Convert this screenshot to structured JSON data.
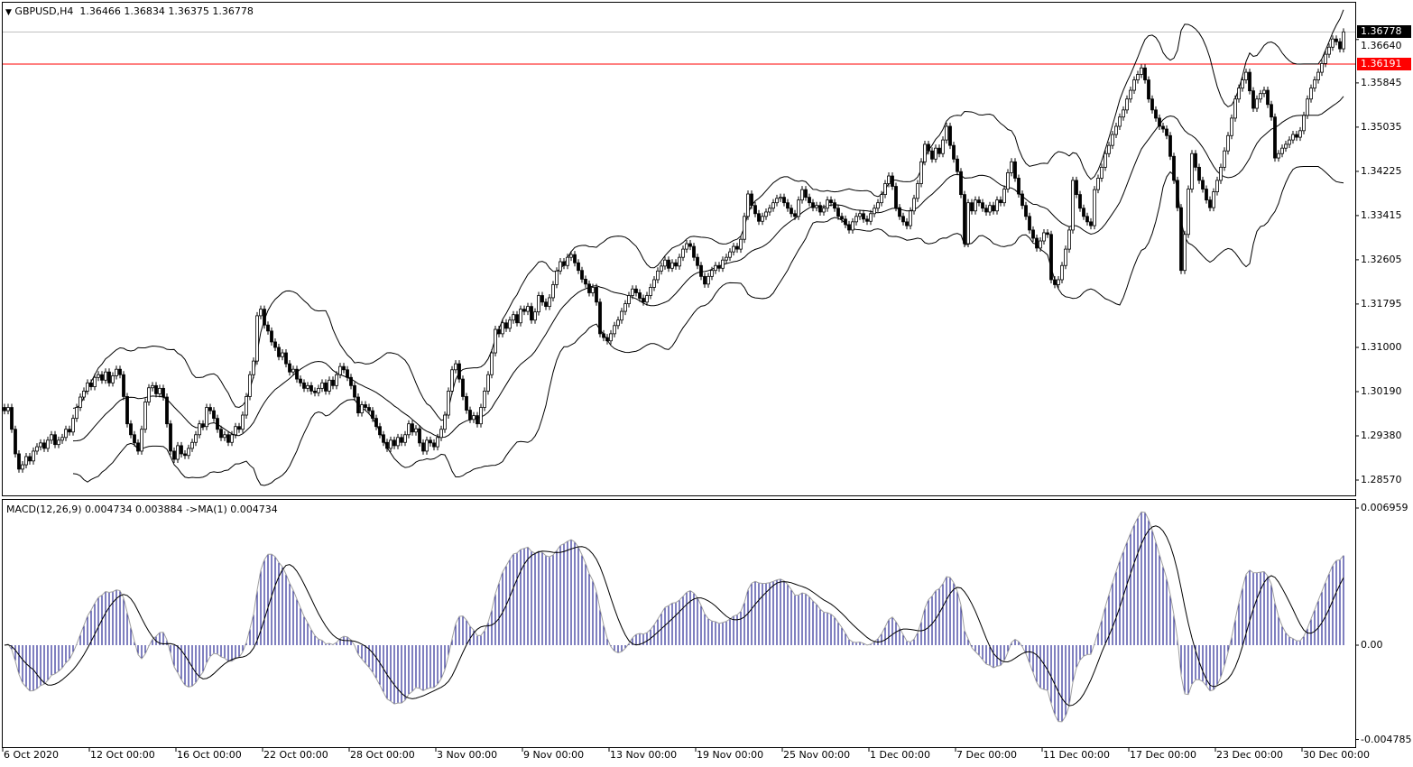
{
  "header": {
    "symbol_timeframe": "GBPUSD,H4",
    "ohlc": "1.36466 1.36834 1.36375 1.36778",
    "menu_icon": "triangle-down-icon"
  },
  "macd_panel": {
    "legend": "MACD(12,26,9) 0.004734 0.003884  ->MA(1) 0.004734"
  },
  "price_tags": {
    "current": {
      "label": "1.36778",
      "value": 1.36778,
      "color": "#000000"
    },
    "level": {
      "label": "1.36191",
      "value": 1.36191,
      "color": "#ff0000"
    }
  },
  "colors": {
    "histogram": "#000080",
    "line": "#000000",
    "ma_overlay": "#a0a0a0",
    "level": "#ff0000",
    "bid_line": "#c0c0c0"
  },
  "chart_data": {
    "type": "candlestick",
    "symbol": "GBPUSD",
    "timeframe": "H4",
    "indicators": [
      "Bollinger Bands",
      "MACD(12,26,9)",
      "MA(1)"
    ],
    "price_axis": {
      "ticks": [
        "1.36640",
        "1.35845",
        "1.35035",
        "1.34225",
        "1.33415",
        "1.32605",
        "1.31795",
        "1.31000",
        "1.30190",
        "1.29380",
        "1.28570"
      ],
      "ylim": [
        1.2831,
        1.3728
      ]
    },
    "macd_axis": {
      "ticks": [
        "0.006959",
        "0.00",
        "-0.004785"
      ],
      "ylim": [
        -0.004785,
        0.006959
      ]
    },
    "x_ticks": [
      {
        "bar": 0,
        "label": "6 Oct 2020"
      },
      {
        "bar": 24,
        "label": "12 Oct 00:00"
      },
      {
        "bar": 48,
        "label": "16 Oct 00:00"
      },
      {
        "bar": 72,
        "label": "22 Oct 00:00"
      },
      {
        "bar": 96,
        "label": "28 Oct 00:00"
      },
      {
        "bar": 120,
        "label": "3 Nov 00:00"
      },
      {
        "bar": 144,
        "label": "9 Nov 00:00"
      },
      {
        "bar": 168,
        "label": "13 Nov 00:00"
      },
      {
        "bar": 192,
        "label": "19 Nov 00:00"
      },
      {
        "bar": 216,
        "label": "25 Nov 00:00"
      },
      {
        "bar": 240,
        "label": "1 Dec 00:00"
      },
      {
        "bar": 264,
        "label": "7 Dec 00:00"
      },
      {
        "bar": 288,
        "label": "11 Dec 00:00"
      },
      {
        "bar": 312,
        "label": "17 Dec 00:00"
      },
      {
        "bar": 336,
        "label": "23 Dec 00:00"
      },
      {
        "bar": 360,
        "label": "30 Dec 00:00"
      }
    ],
    "close": [
      1.2984,
      1.299,
      1.295,
      1.2905,
      1.2877,
      1.2885,
      1.29,
      1.2892,
      1.291,
      1.2918,
      1.2925,
      1.2915,
      1.293,
      1.294,
      1.2922,
      1.293,
      1.2935,
      1.295,
      1.2945,
      1.297,
      1.299,
      1.3009,
      1.302,
      1.3035,
      1.3028,
      1.3045,
      1.305,
      1.304,
      1.3055,
      1.3035,
      1.3048,
      1.306,
      1.305,
      1.301,
      1.296,
      1.294,
      1.2925,
      1.291,
      1.295,
      1.3,
      1.3026,
      1.303,
      1.3015,
      1.3025,
      1.3009,
      1.296,
      1.291,
      1.2895,
      1.292,
      1.2905,
      1.2902,
      1.2915,
      1.2926,
      1.294,
      1.296,
      1.2955,
      1.299,
      1.2984,
      1.297,
      1.295,
      1.2935,
      1.294,
      1.2926,
      1.294,
      1.2955,
      1.295,
      1.2976,
      1.301,
      1.305,
      1.3075,
      1.3158,
      1.317,
      1.3141,
      1.313,
      1.311,
      1.31,
      1.3083,
      1.309,
      1.307,
      1.3055,
      1.306,
      1.3042,
      1.3035,
      1.3025,
      1.303,
      1.302,
      1.3017,
      1.3025,
      1.3035,
      1.302,
      1.304,
      1.303,
      1.305,
      1.3065,
      1.3059,
      1.3045,
      1.303,
      1.3009,
      1.298,
      1.2995,
      1.299,
      1.2984,
      1.297,
      1.2955,
      1.294,
      1.2926,
      1.2915,
      1.293,
      1.292,
      1.2935,
      1.2926,
      1.294,
      1.296,
      1.2945,
      1.2951,
      1.2925,
      1.291,
      1.293,
      1.2925,
      1.2918,
      1.2935,
      1.295,
      1.2976,
      1.302,
      1.3059,
      1.307,
      1.3042,
      1.301,
      1.2985,
      1.2968,
      1.2975,
      1.296,
      1.299,
      1.302,
      1.305,
      1.309,
      1.3133,
      1.3125,
      1.3145,
      1.3135,
      1.315,
      1.316,
      1.3145,
      1.317,
      1.3166,
      1.3175,
      1.315,
      1.3165,
      1.3195,
      1.3183,
      1.3175,
      1.3191,
      1.3215,
      1.324,
      1.3257,
      1.325,
      1.3265,
      1.327,
      1.3255,
      1.3241,
      1.3225,
      1.3216,
      1.32,
      1.321,
      1.3183,
      1.3125,
      1.3118,
      1.3112,
      1.3125,
      1.314,
      1.315,
      1.3166,
      1.318,
      1.3195,
      1.3207,
      1.32,
      1.319,
      1.3183,
      1.3195,
      1.321,
      1.3224,
      1.324,
      1.3249,
      1.326,
      1.3245,
      1.3255,
      1.3249,
      1.3265,
      1.328,
      1.329,
      1.3285,
      1.3265,
      1.325,
      1.323,
      1.3216,
      1.323,
      1.3241,
      1.325,
      1.3245,
      1.326,
      1.3265,
      1.3275,
      1.3285,
      1.328,
      1.3298,
      1.334,
      1.3381,
      1.336,
      1.3345,
      1.3331,
      1.334,
      1.3348,
      1.3355,
      1.3365,
      1.3373,
      1.3375,
      1.3365,
      1.3355,
      1.3345,
      1.334,
      1.337,
      1.3389,
      1.3375,
      1.3365,
      1.3356,
      1.336,
      1.3348,
      1.3355,
      1.337,
      1.3365,
      1.3355,
      1.334,
      1.3335,
      1.3325,
      1.3315,
      1.333,
      1.334,
      1.3345,
      1.3335,
      1.3331,
      1.3345,
      1.3355,
      1.3365,
      1.338,
      1.34,
      1.3414,
      1.3395,
      1.3356,
      1.334,
      1.333,
      1.3323,
      1.335,
      1.3373,
      1.34,
      1.344,
      1.3472,
      1.346,
      1.3445,
      1.3465,
      1.3455,
      1.348,
      1.3505,
      1.347,
      1.3445,
      1.3422,
      1.338,
      1.329,
      1.3365,
      1.335,
      1.337,
      1.3365,
      1.3355,
      1.3348,
      1.336,
      1.335,
      1.337,
      1.3365,
      1.339,
      1.342,
      1.344,
      1.341,
      1.3381,
      1.336,
      1.334,
      1.3315,
      1.33,
      1.3282,
      1.3295,
      1.331,
      1.3307,
      1.3224,
      1.3215,
      1.3224,
      1.325,
      1.328,
      1.3315,
      1.3406,
      1.338,
      1.3355,
      1.334,
      1.333,
      1.3323,
      1.3389,
      1.341,
      1.343,
      1.3455,
      1.347,
      1.349,
      1.3505,
      1.3522,
      1.3535,
      1.3555,
      1.3571,
      1.359,
      1.36,
      1.3612,
      1.359,
      1.3555,
      1.3535,
      1.352,
      1.3505,
      1.35,
      1.3488,
      1.345,
      1.3406,
      1.3356,
      1.3241,
      1.3307,
      1.339,
      1.3455,
      1.343,
      1.3406,
      1.339,
      1.337,
      1.3356,
      1.3385,
      1.3406,
      1.343,
      1.346,
      1.3488,
      1.352,
      1.3555,
      1.3575,
      1.359,
      1.3604,
      1.357,
      1.3538,
      1.3555,
      1.3565,
      1.3571,
      1.3545,
      1.3522,
      1.3447,
      1.3455,
      1.3465,
      1.3472,
      1.348,
      1.349,
      1.3485,
      1.3497,
      1.3525,
      1.3555,
      1.3575,
      1.359,
      1.3604,
      1.362,
      1.3637,
      1.365,
      1.3665,
      1.366,
      1.3647,
      1.3678
    ]
  }
}
